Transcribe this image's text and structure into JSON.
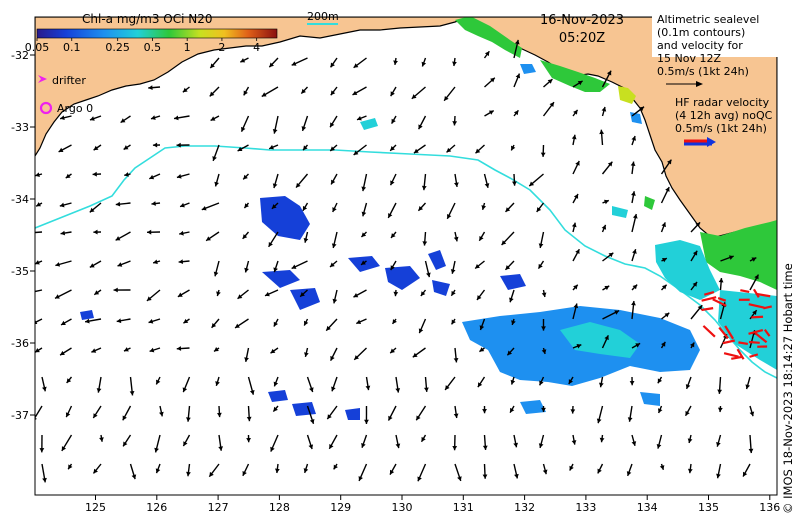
{
  "colorbar": {
    "title": "Chl-a mg/m3 OCi N20",
    "ticks": [
      "0.05",
      "0.1",
      "0.25",
      "0.5",
      "1",
      "2",
      "4"
    ]
  },
  "scale_bar": {
    "label": "200m"
  },
  "timestamp": {
    "date": "16-Nov-2023",
    "time": "05:20Z"
  },
  "altimetry_note": {
    "lines": [
      "Altimetric sealevel",
      "(0.1m contours)",
      "and velocity for",
      "15 Nov 12Z",
      "0.5m/s (1kt 24h)"
    ]
  },
  "hf_radar_note": {
    "lines": [
      "HF radar velocity",
      "(4 12h avg) noQC",
      "0.5m/s (1kt 24h)"
    ]
  },
  "legend": {
    "drifter_label": "drifter",
    "argo_label": "Argo 0"
  },
  "credit": "© IMOS 18-Nov-2023 18:14:27 Hobart time",
  "axes": {
    "lon_ticks": [
      "125",
      "126",
      "127",
      "128",
      "129",
      "130",
      "131",
      "132",
      "133",
      "134",
      "135",
      "136"
    ],
    "lat_ticks": [
      "-32",
      "-33",
      "-34",
      "-35",
      "-36",
      "-37"
    ]
  },
  "colors": {
    "land": "#f7c592",
    "isobath": "#33dddd",
    "arrow": "#000000",
    "radar_arrow": "#ee1111",
    "drifter": "#ee22ee",
    "argo": "#ee22ee"
  }
}
